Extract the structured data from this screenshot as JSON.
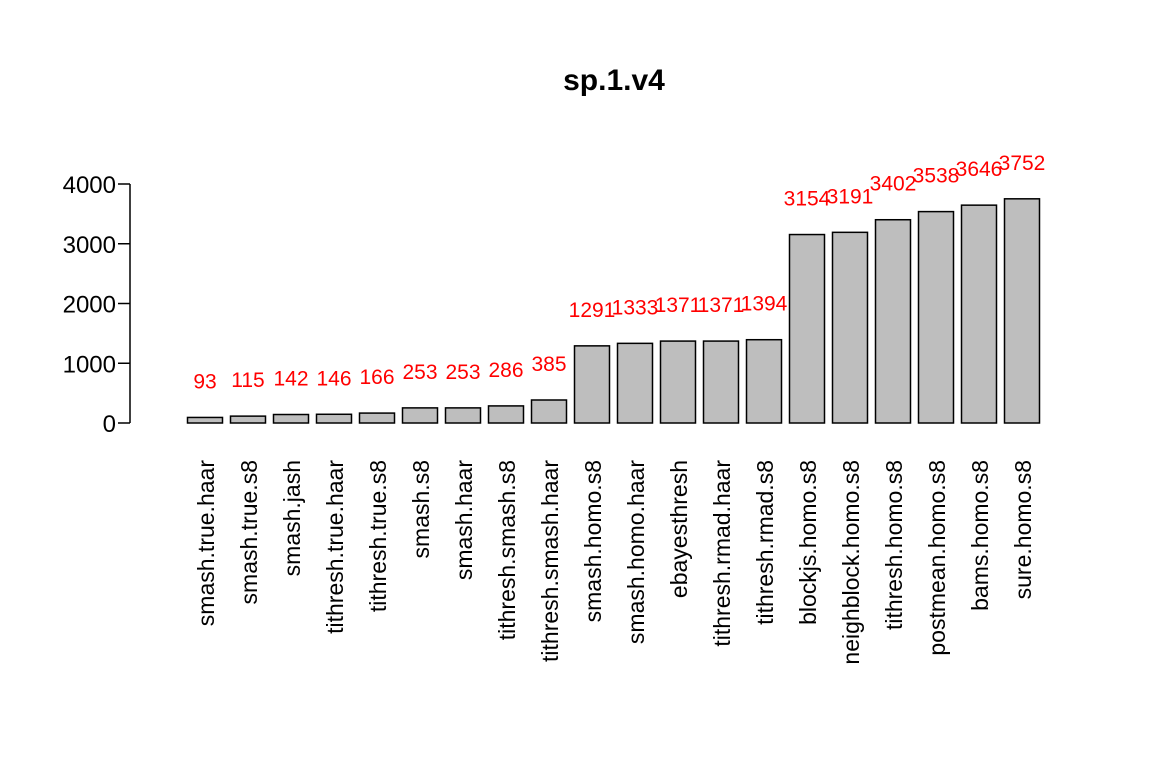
{
  "chart_data": {
    "type": "bar",
    "title": "sp.1.v4",
    "xlabel": "",
    "ylabel": "",
    "categories": [
      "smash.true.haar",
      "smash.true.s8",
      "smash.jash",
      "tithresh.true.haar",
      "tithresh.true.s8",
      "smash.s8",
      "smash.haar",
      "tithresh.smash.s8",
      "tithresh.smash.haar",
      "smash.homo.s8",
      "smash.homo.haar",
      "ebayesthresh",
      "tithresh.rmad.haar",
      "tithresh.rmad.s8",
      "blockjs.homo.s8",
      "neighblock.homo.s8",
      "tithresh.homo.s8",
      "postmean.homo.s8",
      "bams.homo.s8",
      "sure.homo.s8"
    ],
    "values": [
      93,
      115,
      142,
      146,
      166,
      253,
      253,
      286,
      385,
      1291,
      1333,
      1371,
      1371,
      1394,
      3154,
      3191,
      3402,
      3538,
      3646,
      3752
    ],
    "data_labels": [
      "93",
      "115",
      "142",
      "146",
      "166",
      "253",
      "253",
      "286",
      "385",
      "1291",
      "1333",
      "1371",
      "1371",
      "1394",
      "3154",
      "3191",
      "3402",
      "3538",
      "3646",
      "3752"
    ],
    "yticks": [
      0,
      1000,
      2000,
      3000,
      4000
    ],
    "ytick_labels": [
      "0",
      "1000",
      "2000",
      "3000",
      "4000"
    ],
    "ylim": [
      0,
      4000
    ],
    "grid": false,
    "legend": "none",
    "colors": {
      "bar_fill": "#bebebe",
      "bar_stroke": "#000000",
      "data_label": "#ff0000",
      "text": "#000000"
    }
  }
}
